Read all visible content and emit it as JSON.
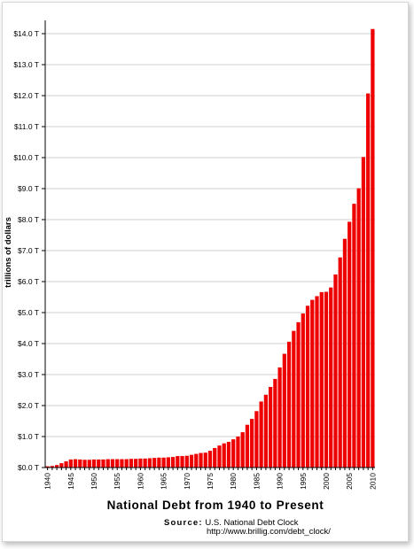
{
  "chart_data": {
    "type": "bar",
    "title": "National Debt from 1940 to Present",
    "ylabel": "trillions of dollars",
    "xlabel": "",
    "ylim": [
      0,
      14.5
    ],
    "yticks": [
      0,
      1,
      2,
      3,
      4,
      5,
      6,
      7,
      8,
      9,
      10,
      11,
      12,
      13,
      14
    ],
    "ytick_labels": [
      "$0.0 T",
      "$1.0 T",
      "$2.0 T",
      "$3.0 T",
      "$4.0 T",
      "$5.0 T",
      "$6.0 T",
      "$7.0 T",
      "$8.0 T",
      "$9.0 T",
      "$10.0 T",
      "$11.0 T",
      "$12.0 T",
      "$13.0 T",
      "$14.0 T"
    ],
    "xtick_labels": [
      "1940",
      "1945",
      "1950",
      "1955",
      "1960",
      "1965",
      "1970",
      "1975",
      "1980",
      "1985",
      "1990",
      "1995",
      "2000",
      "2005",
      "2010"
    ],
    "grid": true,
    "bar_color": "#ee0000",
    "categories": [
      "1940",
      "1941",
      "1942",
      "1943",
      "1944",
      "1945",
      "1946",
      "1947",
      "1948",
      "1949",
      "1950",
      "1951",
      "1952",
      "1953",
      "1954",
      "1955",
      "1956",
      "1957",
      "1958",
      "1959",
      "1960",
      "1961",
      "1962",
      "1963",
      "1964",
      "1965",
      "1966",
      "1967",
      "1968",
      "1969",
      "1970",
      "1971",
      "1972",
      "1973",
      "1974",
      "1975",
      "1976",
      "1977",
      "1978",
      "1979",
      "1980",
      "1981",
      "1982",
      "1983",
      "1984",
      "1985",
      "1986",
      "1987",
      "1988",
      "1989",
      "1990",
      "1991",
      "1992",
      "1993",
      "1994",
      "1995",
      "1996",
      "1997",
      "1998",
      "1999",
      "2000",
      "2001",
      "2002",
      "2003",
      "2004",
      "2005",
      "2006",
      "2007",
      "2008",
      "2009",
      "2010"
    ],
    "values": [
      0.04,
      0.05,
      0.08,
      0.14,
      0.2,
      0.26,
      0.27,
      0.26,
      0.25,
      0.25,
      0.26,
      0.26,
      0.26,
      0.27,
      0.27,
      0.27,
      0.27,
      0.27,
      0.28,
      0.28,
      0.29,
      0.29,
      0.3,
      0.31,
      0.32,
      0.32,
      0.33,
      0.34,
      0.37,
      0.37,
      0.38,
      0.41,
      0.44,
      0.47,
      0.48,
      0.54,
      0.63,
      0.71,
      0.78,
      0.83,
      0.91,
      1.0,
      1.14,
      1.38,
      1.57,
      1.82,
      2.13,
      2.35,
      2.6,
      2.86,
      3.23,
      3.67,
      4.06,
      4.41,
      4.69,
      4.97,
      5.22,
      5.41,
      5.53,
      5.66,
      5.67,
      5.81,
      6.23,
      6.78,
      7.38,
      7.93,
      8.51,
      9.01,
      10.02,
      12.07,
      14.15
    ]
  },
  "source": {
    "label": "Source:",
    "name": "U.S. National Debt Clock",
    "url": "http://www.brillig.com/debt_clock/"
  }
}
